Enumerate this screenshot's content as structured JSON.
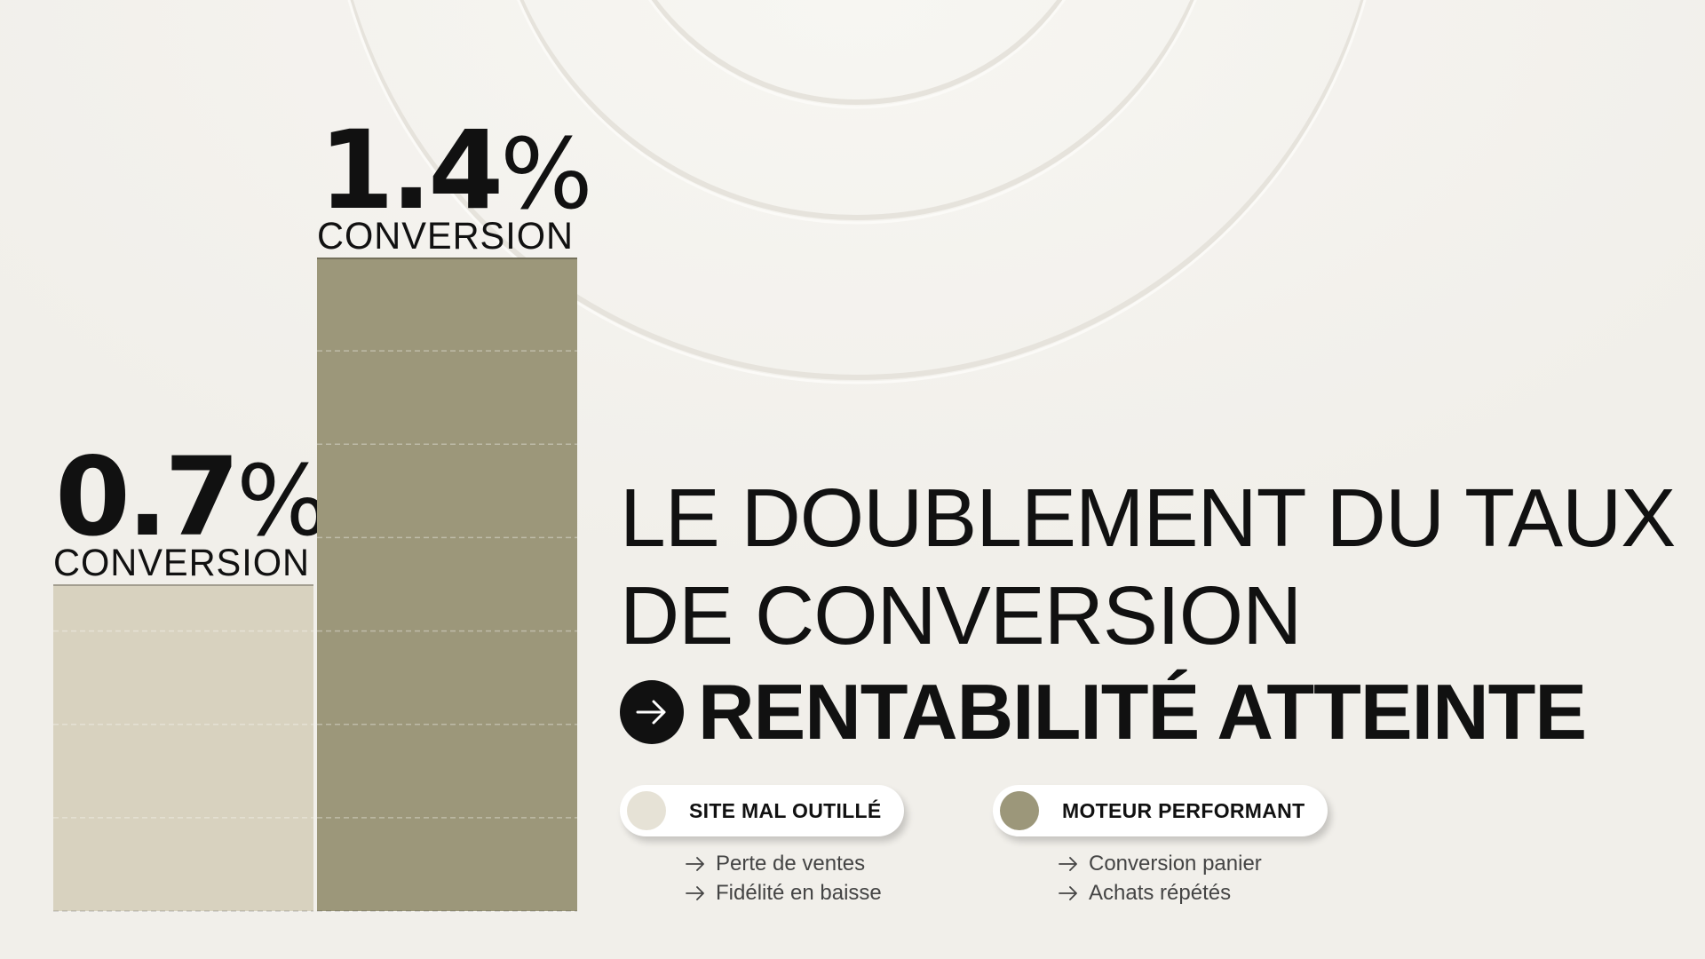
{
  "headline": {
    "line1": "LE DOUBLEMENT DU TAUX",
    "line2": "DE CONVERSION",
    "emphasis": "RENTABILITÉ ATTEINTE",
    "arrow_icon": "arrow-right-icon"
  },
  "legend": [
    {
      "label": "SITE MAL OUTILLÉ",
      "color": "#e6e2d6",
      "items": [
        "Perte de ventes",
        "Fidélité en baisse"
      ]
    },
    {
      "label": "MOTEUR PERFORMANT",
      "color": "#9c977a",
      "items": [
        "Conversion panier",
        "Achats répétés"
      ]
    }
  ],
  "chart_data": {
    "type": "bar",
    "categories": [
      "SITE MAL OUTILLÉ",
      "MOTEUR PERFORMANT"
    ],
    "values": [
      0.7,
      1.4
    ],
    "value_labels": [
      "0.7%",
      "1.4%"
    ],
    "bar_label": "CONVERSION",
    "unit": "%",
    "ylim": [
      0,
      1.4
    ],
    "bar_colors": [
      "#d8d2bf",
      "#9c977a"
    ],
    "grid": "dashed lines inside bars",
    "legend_position": "bottom-right"
  }
}
